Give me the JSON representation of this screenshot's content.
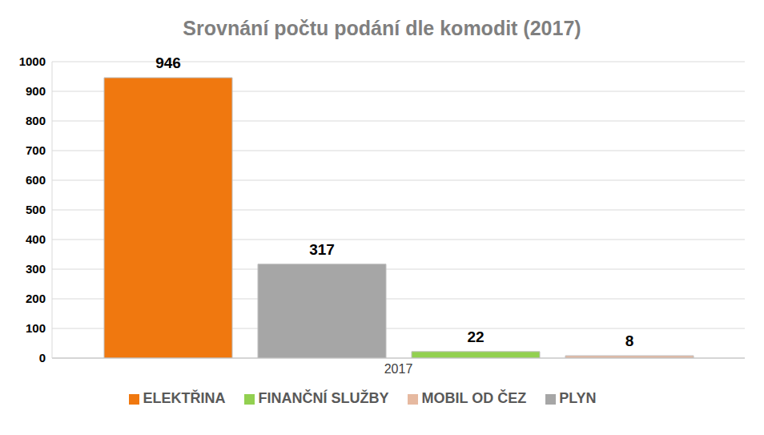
{
  "chart_data": {
    "type": "bar",
    "title": "Srovnání počtu podání dle komodit (2017)",
    "categories": [
      "2017"
    ],
    "series": [
      {
        "name": "ELEKTŘINA",
        "color": "#f0780f",
        "values": [
          946
        ]
      },
      {
        "name": "PLYN",
        "color": "#a6a6a6",
        "values": [
          317
        ]
      },
      {
        "name": "FINANČNÍ SLUŽBY",
        "color": "#92d050",
        "values": [
          22
        ]
      },
      {
        "name": "MOBIL OD ČEZ",
        "color": "#e6b9a0",
        "values": [
          8
        ]
      }
    ],
    "ylim": [
      0,
      1000
    ],
    "yticks": [
      0,
      100,
      200,
      300,
      400,
      500,
      600,
      700,
      800,
      900,
      1000
    ],
    "grid": true,
    "legend": "bottom",
    "data_labels": true
  }
}
